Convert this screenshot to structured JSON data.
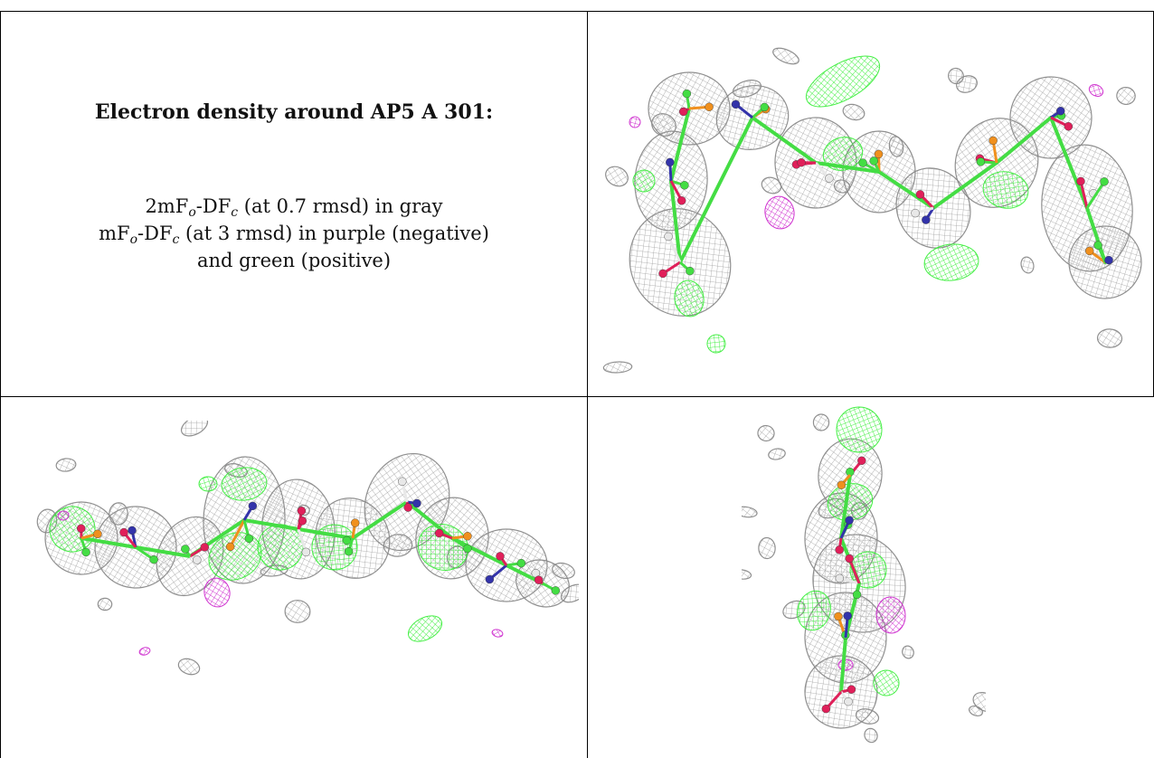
{
  "description": {
    "title": "Electron density around AP5 A 301:",
    "line1": {
      "a": "2mF",
      "a_sub": "o",
      "b": "-DF",
      "b_sub": "c",
      "c": " (at 0.7 rmsd) in gray"
    },
    "line2": {
      "a": "mF",
      "a_sub": "o",
      "b": "-DF",
      "b_sub": "c",
      "c": " (at 3 rmsd) in purple (negative)"
    },
    "line3": "and green (positive)"
  },
  "colors": {
    "mesh_gray": "#9a9a9a",
    "mesh_green": "#33ee33",
    "mesh_purple": "#cc22cc",
    "atom_carbon": "#44dd44",
    "atom_oxygen": "#e0205a",
    "atom_phosphorus": "#f0901e",
    "atom_nitrogen": "#3333aa",
    "atom_hydrogen": "#e8e8e8"
  },
  "panels": [
    {
      "name": "view-1",
      "icon": "electron-density-mesh-view"
    },
    {
      "name": "view-2",
      "icon": "electron-density-mesh-view"
    },
    {
      "name": "view-3",
      "icon": "electron-density-mesh-view"
    }
  ]
}
